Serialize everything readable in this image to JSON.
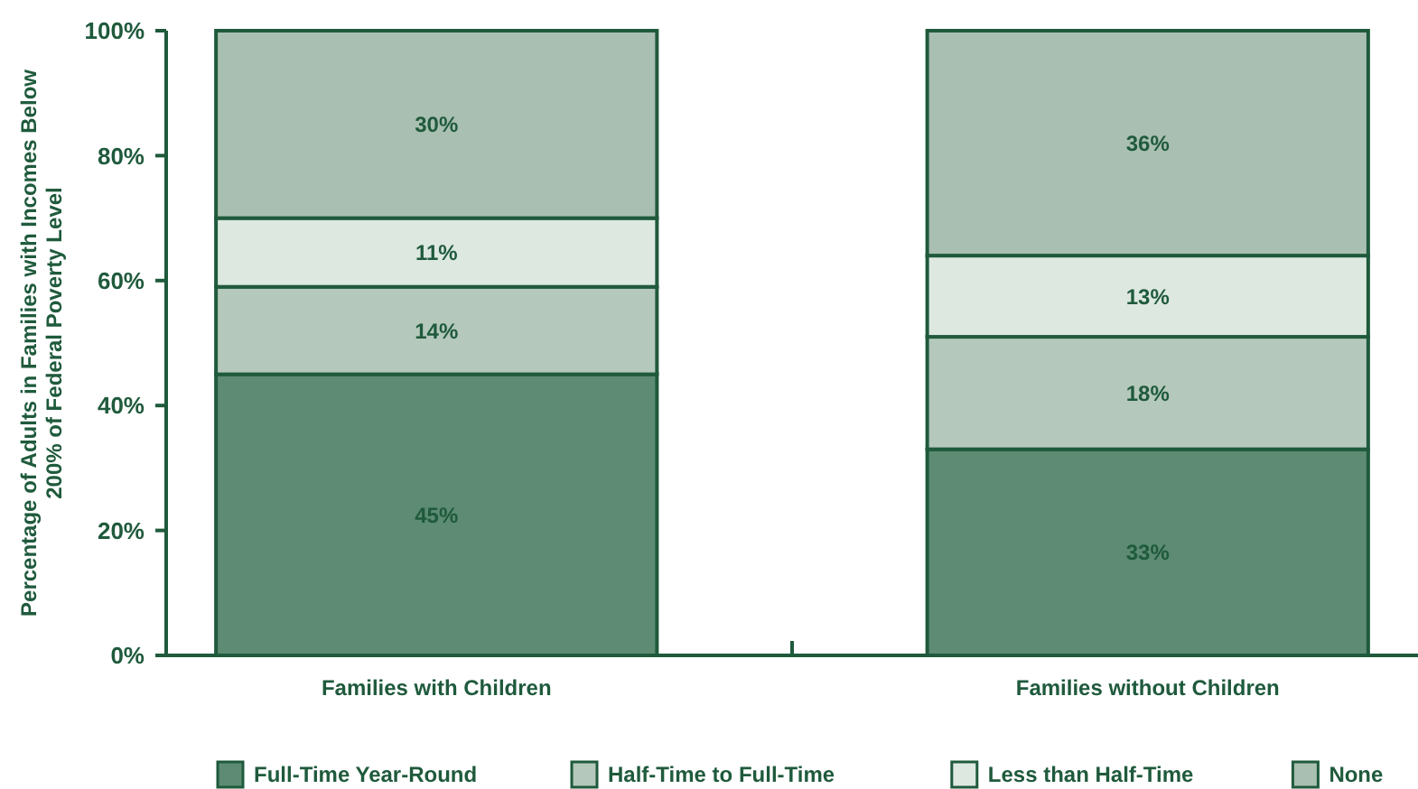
{
  "chart_data": {
    "type": "bar",
    "stacked": true,
    "ylabel": "Percentage of Adults in Families with Incomes Below 200% of Federal Poverty Level",
    "categories": [
      "Families with Children",
      "Families without Children"
    ],
    "series": [
      {
        "name": "Full-Time Year-Round",
        "color": "#5d8b73",
        "values": [
          45,
          33
        ],
        "value_labels": [
          "45%",
          "33%"
        ]
      },
      {
        "name": "Half-Time to Full-Time",
        "color": "#b4c8bb",
        "values": [
          14,
          18
        ],
        "value_labels": [
          "14%",
          "18%"
        ]
      },
      {
        "name": "Less than Half-Time",
        "color": "#dde8e1",
        "values": [
          11,
          13
        ],
        "value_labels": [
          "11%",
          "13%"
        ]
      },
      {
        "name": "None",
        "color": "#a9bfb1",
        "values": [
          30,
          36
        ],
        "value_labels": [
          "30%",
          "36%"
        ]
      }
    ],
    "ylim": [
      0,
      100
    ],
    "yticks": [
      {
        "value": 0,
        "label": "0%"
      },
      {
        "value": 20,
        "label": "20%"
      },
      {
        "value": 40,
        "label": "40%"
      },
      {
        "value": 60,
        "label": "60%"
      },
      {
        "value": 80,
        "label": "80%"
      },
      {
        "value": 100,
        "label": "100%"
      }
    ],
    "legend": "bottom"
  }
}
